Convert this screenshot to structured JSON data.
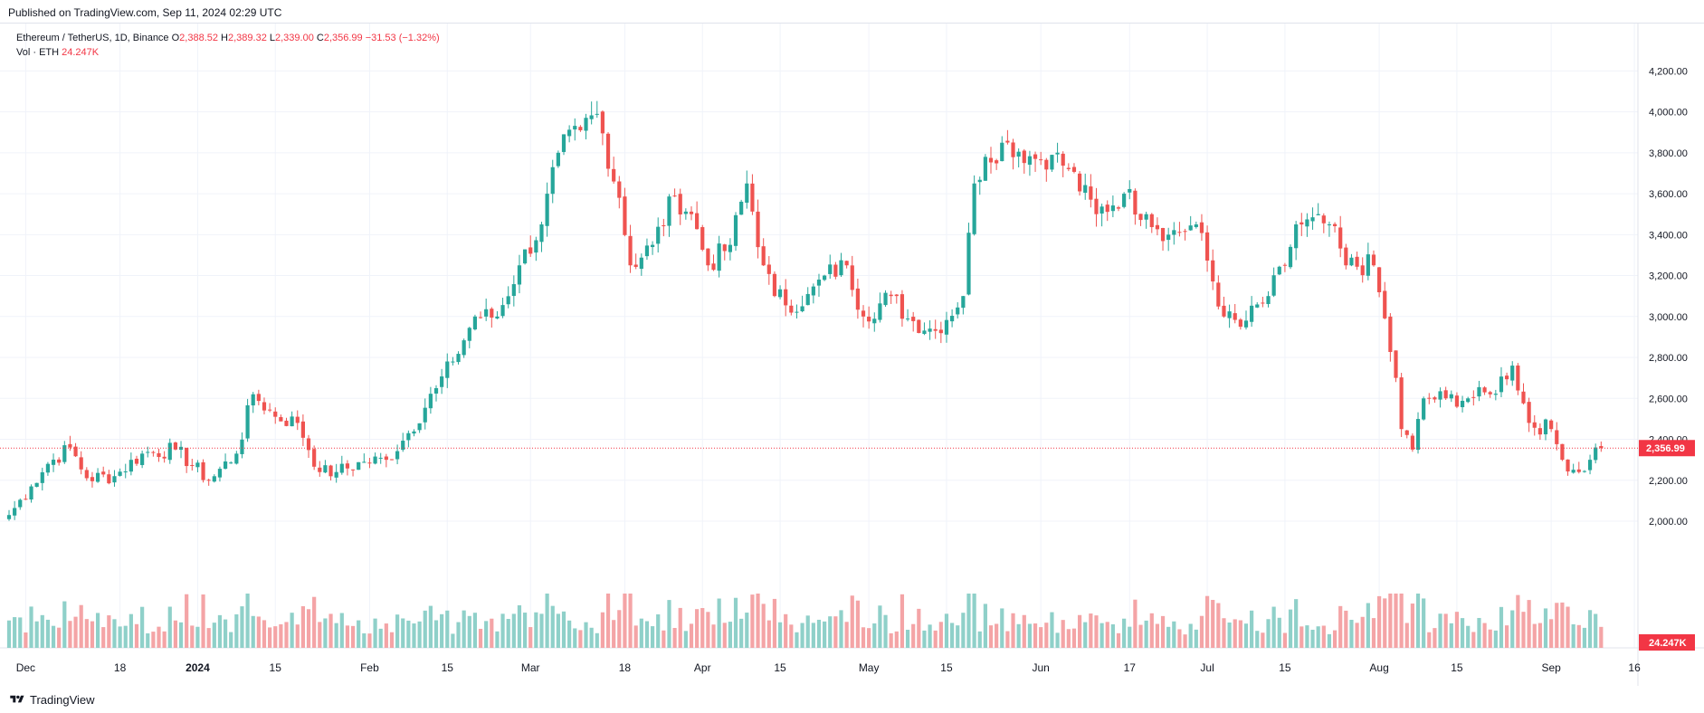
{
  "header": {
    "published": "Published on TradingView.com, Sep 11, 2024 02:29 UTC"
  },
  "footer": {
    "brand": "TradingView"
  },
  "colors": {
    "up": "#26a69a",
    "down": "#ef5350",
    "volume_up": "#8fd0c9",
    "volume_down": "#f4a4a6",
    "grid": "#f0f3fa",
    "last_price_label": "#f23645"
  },
  "chart_data": {
    "type": "candlestick",
    "legend": {
      "symbol": "Ethereum / TetherUS, 1D, Binance",
      "o_label": "O",
      "o_value": "2,388.52",
      "h_label": "H",
      "h_value": "2,389.32",
      "l_label": "L",
      "l_value": "2,339.00",
      "c_label": "C",
      "c_value": "2,356.99",
      "change": "−31.53 (−1.32%)",
      "volume_label": "Vol · ETH",
      "volume_value": "24.247K"
    },
    "last_price": 2356.99,
    "last_price_label": "2,356.99",
    "last_volume_label": "24.247K",
    "ylim": [
      1800,
      4300
    ],
    "y_ticks": [
      2000,
      2200,
      2400,
      2600,
      2800,
      3000,
      3200,
      3400,
      3600,
      3800,
      4000,
      4200
    ],
    "y_tick_labels": [
      "2,000.00",
      "2,200.00",
      "2,400.00",
      "2,600.00",
      "2,800.00",
      "3,000.00",
      "3,200.00",
      "3,400.00",
      "3,600.00",
      "3,800.00",
      "4,000.00",
      "4,200.00"
    ],
    "x_ticks": [
      {
        "date": "2023-12-01",
        "label": "Dec",
        "bold": false
      },
      {
        "date": "2023-12-18",
        "label": "18",
        "bold": false
      },
      {
        "date": "2024-01-01",
        "label": "2024",
        "bold": true
      },
      {
        "date": "2024-01-15",
        "label": "15",
        "bold": false
      },
      {
        "date": "2024-02-01",
        "label": "Feb",
        "bold": false
      },
      {
        "date": "2024-02-15",
        "label": "15",
        "bold": false
      },
      {
        "date": "2024-03-01",
        "label": "Mar",
        "bold": false
      },
      {
        "date": "2024-03-18",
        "label": "18",
        "bold": false
      },
      {
        "date": "2024-04-01",
        "label": "Apr",
        "bold": false
      },
      {
        "date": "2024-04-15",
        "label": "15",
        "bold": false
      },
      {
        "date": "2024-05-01",
        "label": "May",
        "bold": false
      },
      {
        "date": "2024-05-15",
        "label": "15",
        "bold": false
      },
      {
        "date": "2024-06-01",
        "label": "Jun",
        "bold": false
      },
      {
        "date": "2024-06-17",
        "label": "17",
        "bold": false
      },
      {
        "date": "2024-07-01",
        "label": "Jul",
        "bold": false
      },
      {
        "date": "2024-07-15",
        "label": "15",
        "bold": false
      },
      {
        "date": "2024-08-01",
        "label": "Aug",
        "bold": false
      },
      {
        "date": "2024-08-15",
        "label": "15",
        "bold": false
      },
      {
        "date": "2024-09-01",
        "label": "Sep",
        "bold": false
      },
      {
        "date": "2024-09-16",
        "label": "16",
        "bold": false
      }
    ],
    "x_start": "2023-11-28",
    "close_anchors": [
      [
        "2023-11-28",
        2030
      ],
      [
        "2023-12-02",
        2170
      ],
      [
        "2023-12-05",
        2280
      ],
      [
        "2023-12-09",
        2360
      ],
      [
        "2023-12-12",
        2210
      ],
      [
        "2023-12-17",
        2220
      ],
      [
        "2023-12-22",
        2330
      ],
      [
        "2023-12-28",
        2350
      ],
      [
        "2024-01-03",
        2200
      ],
      [
        "2024-01-08",
        2330
      ],
      [
        "2024-01-11",
        2620
      ],
      [
        "2024-01-15",
        2510
      ],
      [
        "2024-01-19",
        2480
      ],
      [
        "2024-01-23",
        2240
      ],
      [
        "2024-01-26",
        2240
      ],
      [
        "2024-01-31",
        2290
      ],
      [
        "2024-02-04",
        2300
      ],
      [
        "2024-02-08",
        2430
      ],
      [
        "2024-02-13",
        2650
      ],
      [
        "2024-02-16",
        2780
      ],
      [
        "2024-02-20",
        3000
      ],
      [
        "2024-02-24",
        3000
      ],
      [
        "2024-02-28",
        3250
      ],
      [
        "2024-03-03",
        3450
      ],
      [
        "2024-03-06",
        3800
      ],
      [
        "2024-03-10",
        3910
      ],
      [
        "2024-03-13",
        3990
      ],
      [
        "2024-03-17",
        3580
      ],
      [
        "2024-03-19",
        3250
      ],
      [
        "2024-03-23",
        3350
      ],
      [
        "2024-03-27",
        3590
      ],
      [
        "2024-03-30",
        3500
      ],
      [
        "2024-04-02",
        3250
      ],
      [
        "2024-04-06",
        3350
      ],
      [
        "2024-04-09",
        3650
      ],
      [
        "2024-04-12",
        3250
      ],
      [
        "2024-04-14",
        3100
      ],
      [
        "2024-04-19",
        3050
      ],
      [
        "2024-04-23",
        3200
      ],
      [
        "2024-04-27",
        3250
      ],
      [
        "2024-04-30",
        3000
      ],
      [
        "2024-05-05",
        3100
      ],
      [
        "2024-05-08",
        2990
      ],
      [
        "2024-05-13",
        2930
      ],
      [
        "2024-05-18",
        3100
      ],
      [
        "2024-05-20",
        3650
      ],
      [
        "2024-05-22",
        3780
      ],
      [
        "2024-05-26",
        3850
      ],
      [
        "2024-05-31",
        3770
      ],
      [
        "2024-06-03",
        3790
      ],
      [
        "2024-06-06",
        3720
      ],
      [
        "2024-06-11",
        3500
      ],
      [
        "2024-06-16",
        3600
      ],
      [
        "2024-06-20",
        3500
      ],
      [
        "2024-06-24",
        3400
      ],
      [
        "2024-06-29",
        3450
      ],
      [
        "2024-07-04",
        3000
      ],
      [
        "2024-07-07",
        2950
      ],
      [
        "2024-07-12",
        3100
      ],
      [
        "2024-07-15",
        3250
      ],
      [
        "2024-07-17",
        3450
      ],
      [
        "2024-07-23",
        3450
      ],
      [
        "2024-07-26",
        3250
      ],
      [
        "2024-07-31",
        3250
      ],
      [
        "2024-08-04",
        2700
      ],
      [
        "2024-08-05",
        2450
      ],
      [
        "2024-08-07",
        2350
      ],
      [
        "2024-08-09",
        2600
      ],
      [
        "2024-08-13",
        2600
      ],
      [
        "2024-08-17",
        2600
      ],
      [
        "2024-08-21",
        2620
      ],
      [
        "2024-08-25",
        2760
      ],
      [
        "2024-08-28",
        2480
      ],
      [
        "2024-09-01",
        2450
      ],
      [
        "2024-09-03",
        2300
      ],
      [
        "2024-09-06",
        2240
      ],
      [
        "2024-09-08",
        2300
      ],
      [
        "2024-09-09",
        2360
      ],
      [
        "2024-09-10",
        2389
      ]
    ],
    "volume_scale": [
      0,
      100
    ]
  }
}
